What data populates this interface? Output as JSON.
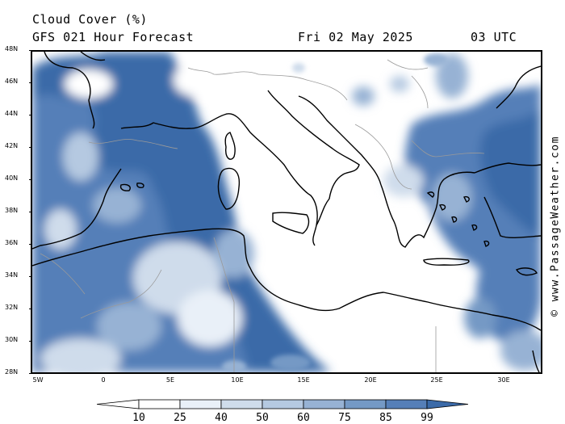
{
  "header": {
    "title": "Cloud Cover (%)",
    "subtitle": "GFS 021 Hour Forecast",
    "date": "Fri 02 May 2025",
    "time": "03 UTC"
  },
  "axes": {
    "lat_labels": [
      "48N",
      "46N",
      "44N",
      "42N",
      "40N",
      "38N",
      "36N",
      "34N",
      "32N",
      "30N",
      "28N"
    ],
    "lon_labels": [
      "5W",
      "0",
      "5E",
      "10E",
      "15E",
      "20E",
      "25E",
      "30E"
    ]
  },
  "credit": "© www.PassageWeather.com",
  "legend": {
    "labels": [
      "10",
      "25",
      "40",
      "50",
      "60",
      "75",
      "85",
      "99"
    ],
    "colors": [
      "#ffffff",
      "#e9f0f8",
      "#cfdceb",
      "#b5c9e1",
      "#97b2d4",
      "#7499c5",
      "#557fb8",
      "#3b6aa8"
    ]
  },
  "colors": {
    "cloud_dark": "#3b6aa8",
    "cloud_mid": "#7499c5",
    "cloud_light": "#cfdceb",
    "coast": "#000000",
    "border": "#9a9a9a"
  }
}
